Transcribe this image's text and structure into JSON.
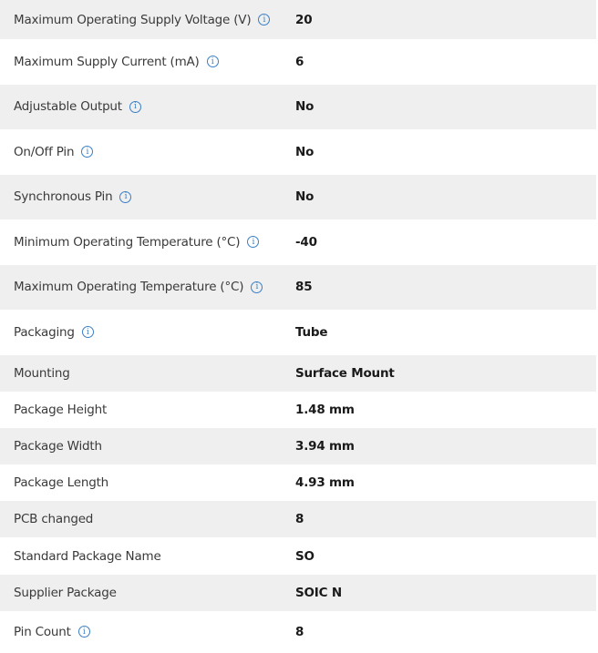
{
  "accent_color": "#3a7fc4",
  "info_icon_glyph": "i",
  "rows": [
    {
      "label": "Maximum Operating Supply Voltage (V)",
      "value": "20",
      "info": true
    },
    {
      "label": "Maximum Supply Current (mA)",
      "value": "6",
      "info": true
    },
    {
      "label": "Adjustable Output",
      "value": "No",
      "info": true
    },
    {
      "label": "On/Off Pin",
      "value": "No",
      "info": true
    },
    {
      "label": "Synchronous Pin",
      "value": "No",
      "info": true
    },
    {
      "label": "Minimum Operating Temperature (°C)",
      "value": "-40",
      "info": true
    },
    {
      "label": "Maximum Operating Temperature (°C)",
      "value": "85",
      "info": true
    },
    {
      "label": "Packaging",
      "value": "Tube",
      "info": true
    },
    {
      "label": "Mounting",
      "value": "Surface Mount",
      "info": false
    },
    {
      "label": "Package Height",
      "value": "1.48 mm",
      "info": false
    },
    {
      "label": "Package Width",
      "value": "3.94 mm",
      "info": false
    },
    {
      "label": "Package Length",
      "value": "4.93 mm",
      "info": false
    },
    {
      "label": "PCB changed",
      "value": "8",
      "info": false
    },
    {
      "label": "Standard Package Name",
      "value": "SO",
      "info": false
    },
    {
      "label": "Supplier Package",
      "value": "SOIC N",
      "info": false
    },
    {
      "label": "Pin Count",
      "value": "8",
      "info": true
    }
  ]
}
